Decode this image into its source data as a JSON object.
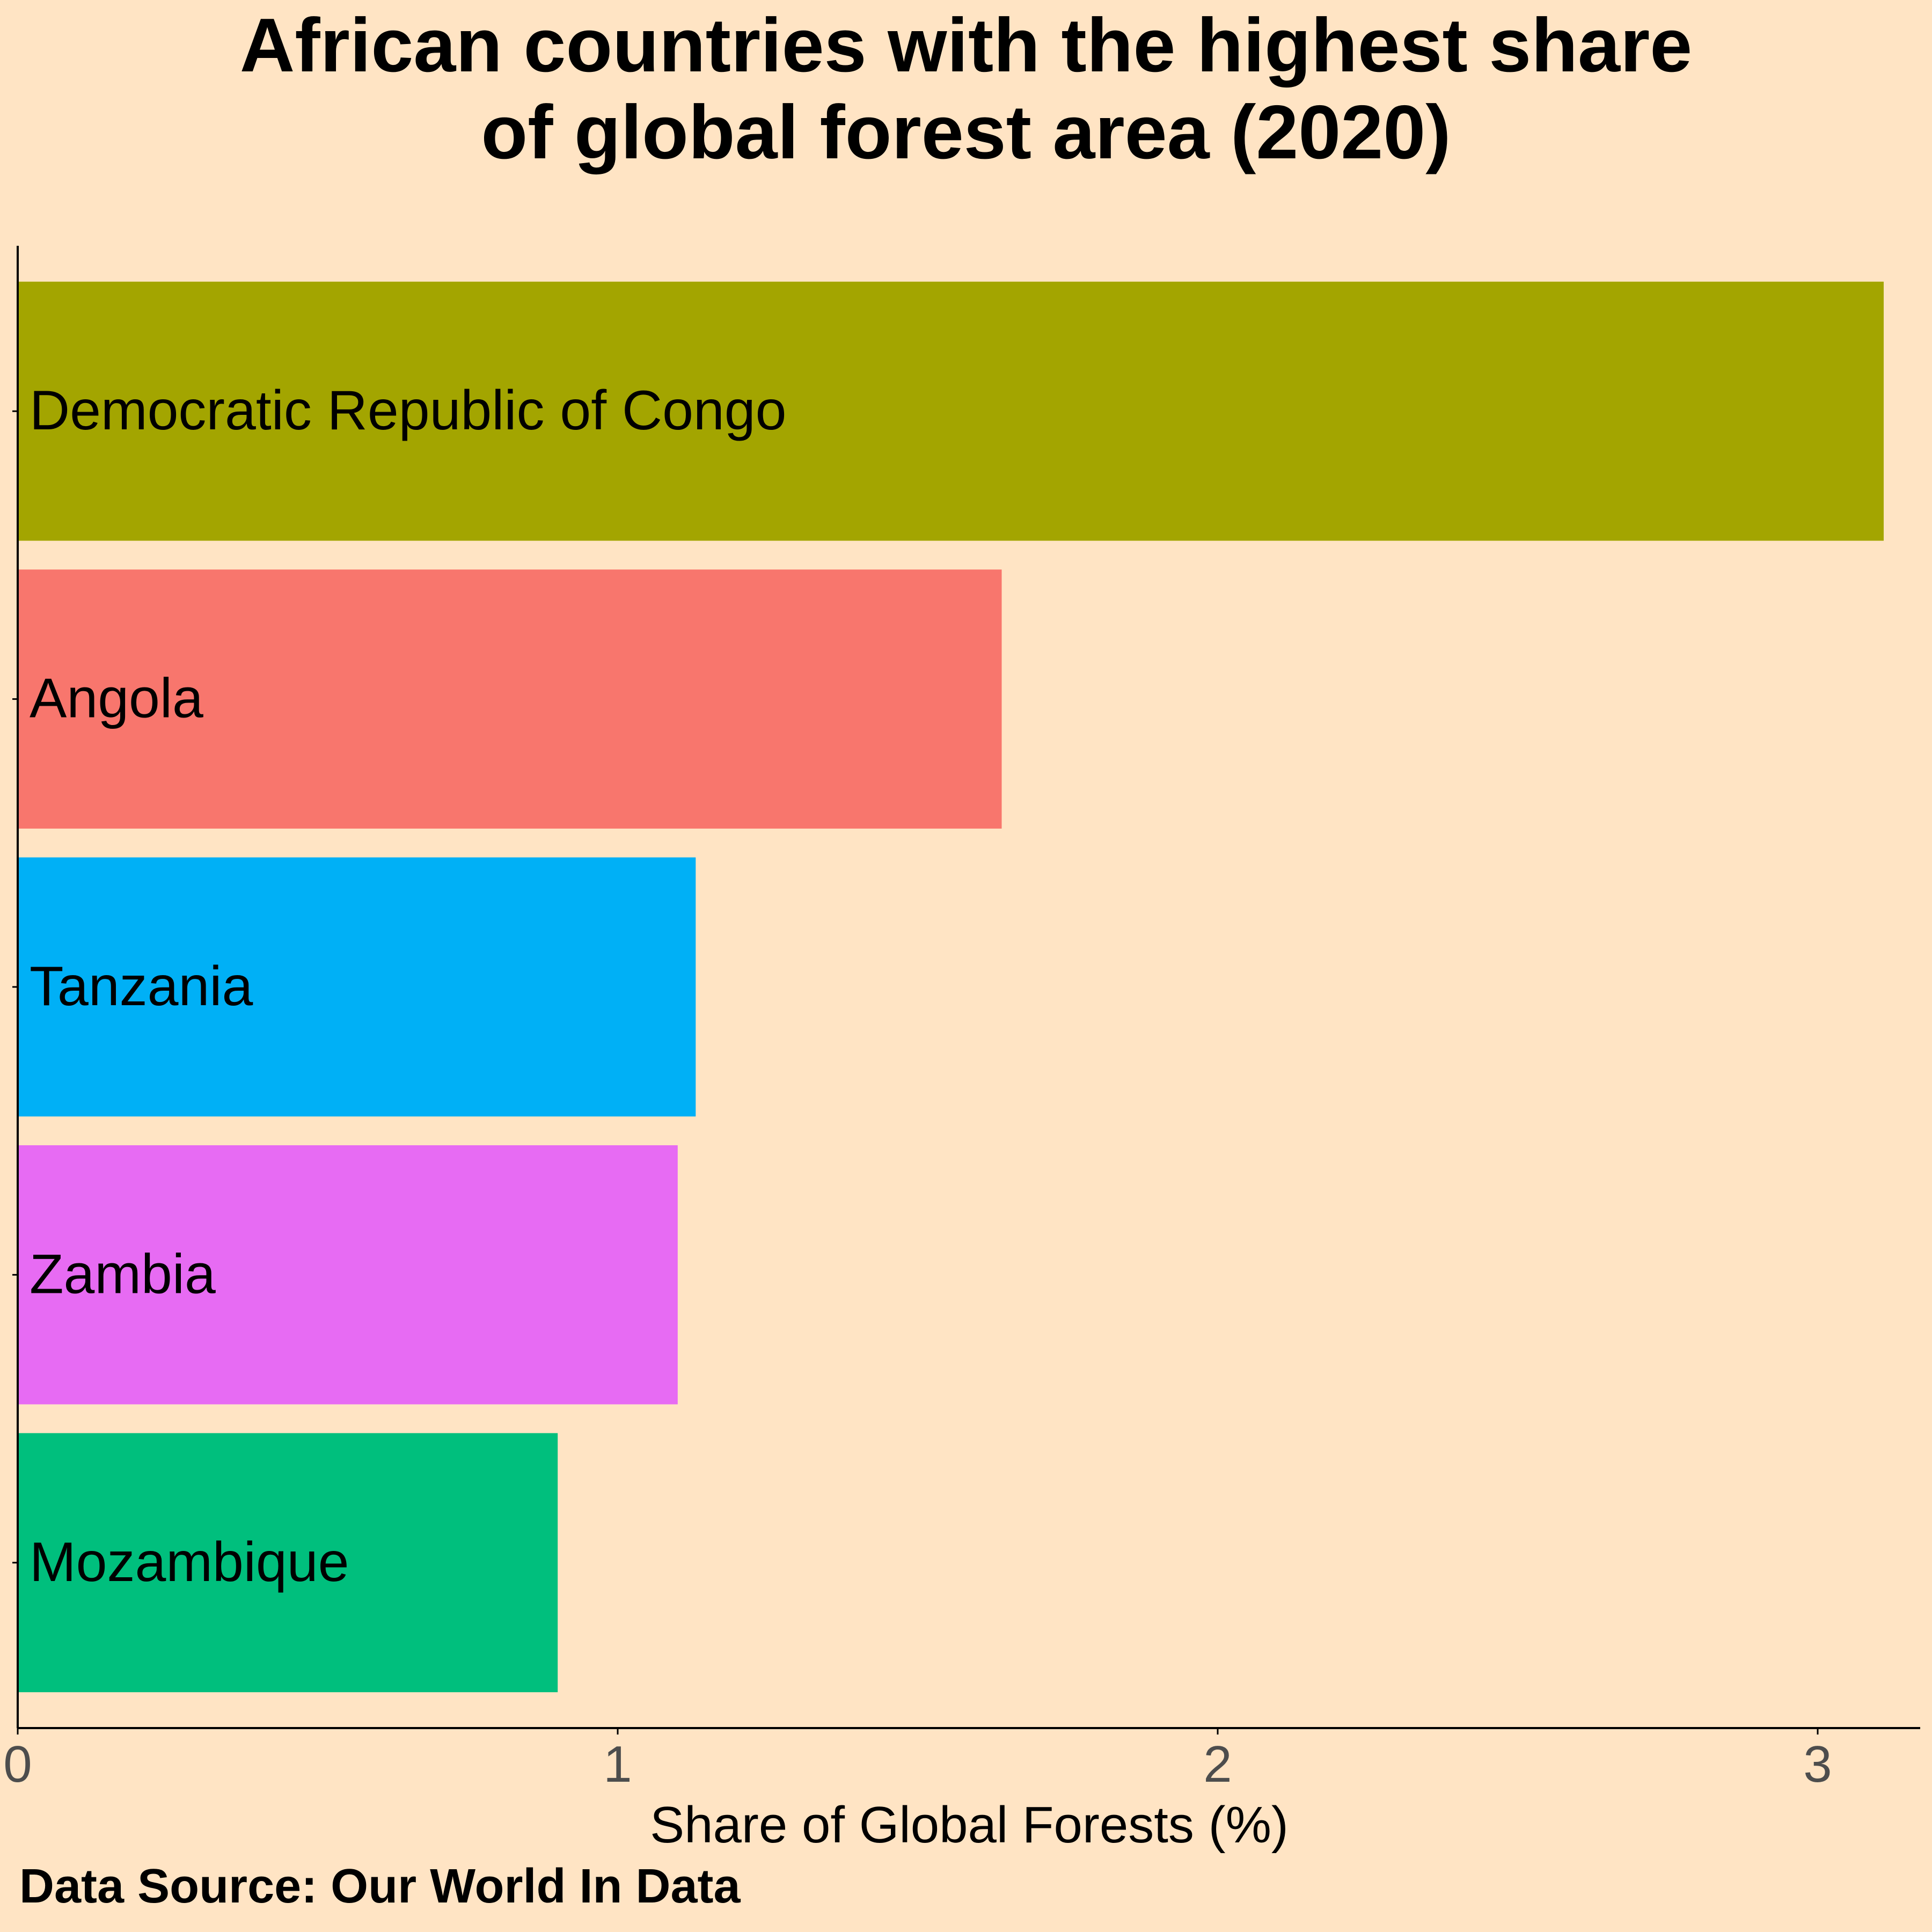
{
  "chart_data": {
    "type": "bar",
    "orientation": "horizontal",
    "title": "African countries with the highest share of global forest area (2020)",
    "title_lines": [
      "African countries with the highest share",
      "of global forest area (2020)"
    ],
    "categories": [
      "Democratic Republic of Congo",
      "Angola",
      "Tanzania",
      "Zambia",
      "Mozambique"
    ],
    "values": [
      3.11,
      1.64,
      1.13,
      1.1,
      0.9
    ],
    "colors": [
      "#A3A500",
      "#F8766D",
      "#00B0F6",
      "#E76BF3",
      "#00BF7D"
    ],
    "xlabel": "Share of Global Forests (%)",
    "ylabel": "",
    "xlim": [
      0,
      3.17
    ],
    "xticks": [
      0,
      1,
      2,
      3
    ],
    "xtick_labels": [
      "0",
      "1",
      "2",
      "3"
    ],
    "grid": false,
    "legend": "none",
    "labels_inside_bars": true
  },
  "caption": "Data Source: Our World In Data",
  "colors": {
    "background": "#FFE4C4",
    "axis": "#000000",
    "tick_label": "#4D4D4D",
    "text": "#000000"
  }
}
